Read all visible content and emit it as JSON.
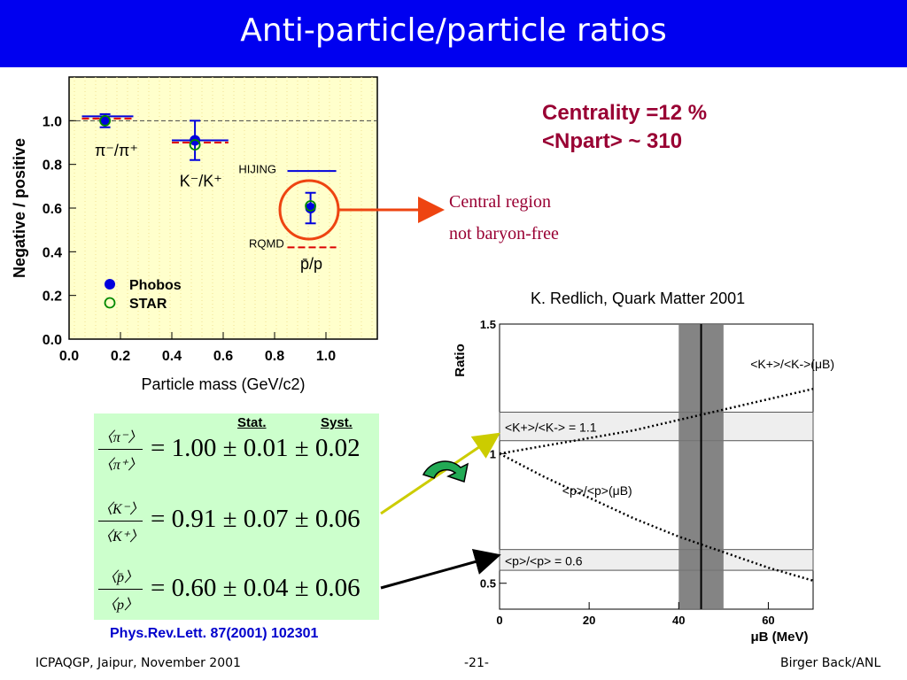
{
  "slide": {
    "title": "Anti-particle/particle ratios",
    "centrality_line1": "Centrality =12 %",
    "centrality_line2": "<Npart> ~ 310",
    "central_region_line1": "Central region",
    "central_region_line2": "not baryon-free",
    "reference": "K. Redlich, Quark Matter 2001",
    "citation": "Phys.Rev.Lett. 87(2001) 102301",
    "footer_left": "ICPAQGP, Jaipur, November 2001",
    "footer_center": "-21-",
    "footer_right": "Birger Back/ANL"
  },
  "results": {
    "stat_label": "Stat.",
    "syst_label": "Syst.",
    "rows": [
      {
        "num": "〈π⁻〉",
        "den": "〈π⁺〉",
        "text": "= 1.00 ± 0.01 ± 0.02"
      },
      {
        "num": "〈K⁻〉",
        "den": "〈K⁺〉",
        "text": "= 0.91 ± 0.07 ± 0.06"
      },
      {
        "num": "〈p̄〉",
        "den": "〈p〉",
        "text": "= 0.60 ± 0.04 ± 0.06"
      }
    ]
  },
  "chart_data": [
    {
      "type": "scatter",
      "xlabel": "Particle mass (GeV/c2)",
      "ylabel": "Negative / positive",
      "xlim": [
        0.0,
        1.2
      ],
      "ylim": [
        0.0,
        1.2
      ],
      "xticks": [
        "0.0",
        "0.2",
        "0.4",
        "0.6",
        "0.8",
        "1.0"
      ],
      "yticks": [
        "0.0",
        "0.2",
        "0.4",
        "0.6",
        "0.8",
        "1.0"
      ],
      "background": "#ffffcc",
      "reference_line_y": 1.0,
      "legend": "bottom-left",
      "series": [
        {
          "name": "Phobos",
          "color": "#0000dd",
          "marker": "filled-circle",
          "points": [
            {
              "x": 0.14,
              "y": 1.0,
              "err": 0.03
            },
            {
              "x": 0.49,
              "y": 0.91,
              "err": 0.09
            },
            {
              "x": 0.94,
              "y": 0.6,
              "err": 0.07
            }
          ]
        },
        {
          "name": "STAR",
          "color": "#008800",
          "marker": "open-circle",
          "points": [
            {
              "x": 0.14,
              "y": 1.0
            },
            {
              "x": 0.49,
              "y": 0.89
            },
            {
              "x": 0.94,
              "y": 0.61
            }
          ]
        }
      ],
      "model_lines": [
        {
          "name": "HIJING",
          "color": "#0000dd",
          "dash": false,
          "segments": [
            {
              "x0": 0.05,
              "x1": 0.25,
              "y": 1.02
            },
            {
              "x0": 0.4,
              "x1": 0.62,
              "y": 0.91
            },
            {
              "x0": 0.85,
              "x1": 1.04,
              "y": 0.77
            }
          ]
        },
        {
          "name": "RQMD",
          "color": "#dd0000",
          "dash": true,
          "segments": [
            {
              "x0": 0.05,
              "x1": 0.25,
              "y": 1.01
            },
            {
              "x0": 0.4,
              "x1": 0.62,
              "y": 0.9
            },
            {
              "x0": 0.85,
              "x1": 1.04,
              "y": 0.42
            }
          ]
        }
      ],
      "point_labels": [
        {
          "text": "π⁻/π⁺",
          "x": 0.1,
          "y": 0.84
        },
        {
          "text": "K⁻/K⁺",
          "x": 0.43,
          "y": 0.7
        },
        {
          "text": "p̄/p",
          "x": 0.9,
          "y": 0.32
        },
        {
          "text": "HIJING",
          "x": 0.66,
          "y": 0.76
        },
        {
          "text": "RQMD",
          "x": 0.7,
          "y": 0.42
        }
      ]
    },
    {
      "type": "line",
      "ylabel": "Ratio",
      "xlabel": "μB (MeV)",
      "xlim": [
        0,
        70
      ],
      "ylim": [
        0.4,
        1.5
      ],
      "xticks": [
        "0",
        "20",
        "40",
        "60"
      ],
      "yticks": [
        "0.5",
        "1",
        "1.5"
      ],
      "shaded_band_x": [
        40,
        50
      ],
      "vertical_line_x": 45,
      "bands": [
        {
          "label": "<K+>/<K-> = 1.1",
          "ymin": 1.05,
          "ymax": 1.16
        },
        {
          "label": "<p>/<p> = 0.6",
          "ymin": 0.55,
          "ymax": 0.63
        }
      ],
      "curves": [
        {
          "name": "<K+>/<K->(μB)",
          "x": [
            0,
            10,
            20,
            30,
            40,
            50,
            60,
            70
          ],
          "y": [
            1.0,
            1.03,
            1.06,
            1.09,
            1.13,
            1.17,
            1.21,
            1.25
          ]
        },
        {
          "name": "<p>/<p>(μB)",
          "x": [
            0,
            10,
            20,
            30,
            40,
            50,
            60,
            70
          ],
          "y": [
            1.0,
            0.91,
            0.83,
            0.75,
            0.68,
            0.62,
            0.56,
            0.51
          ]
        }
      ]
    }
  ]
}
